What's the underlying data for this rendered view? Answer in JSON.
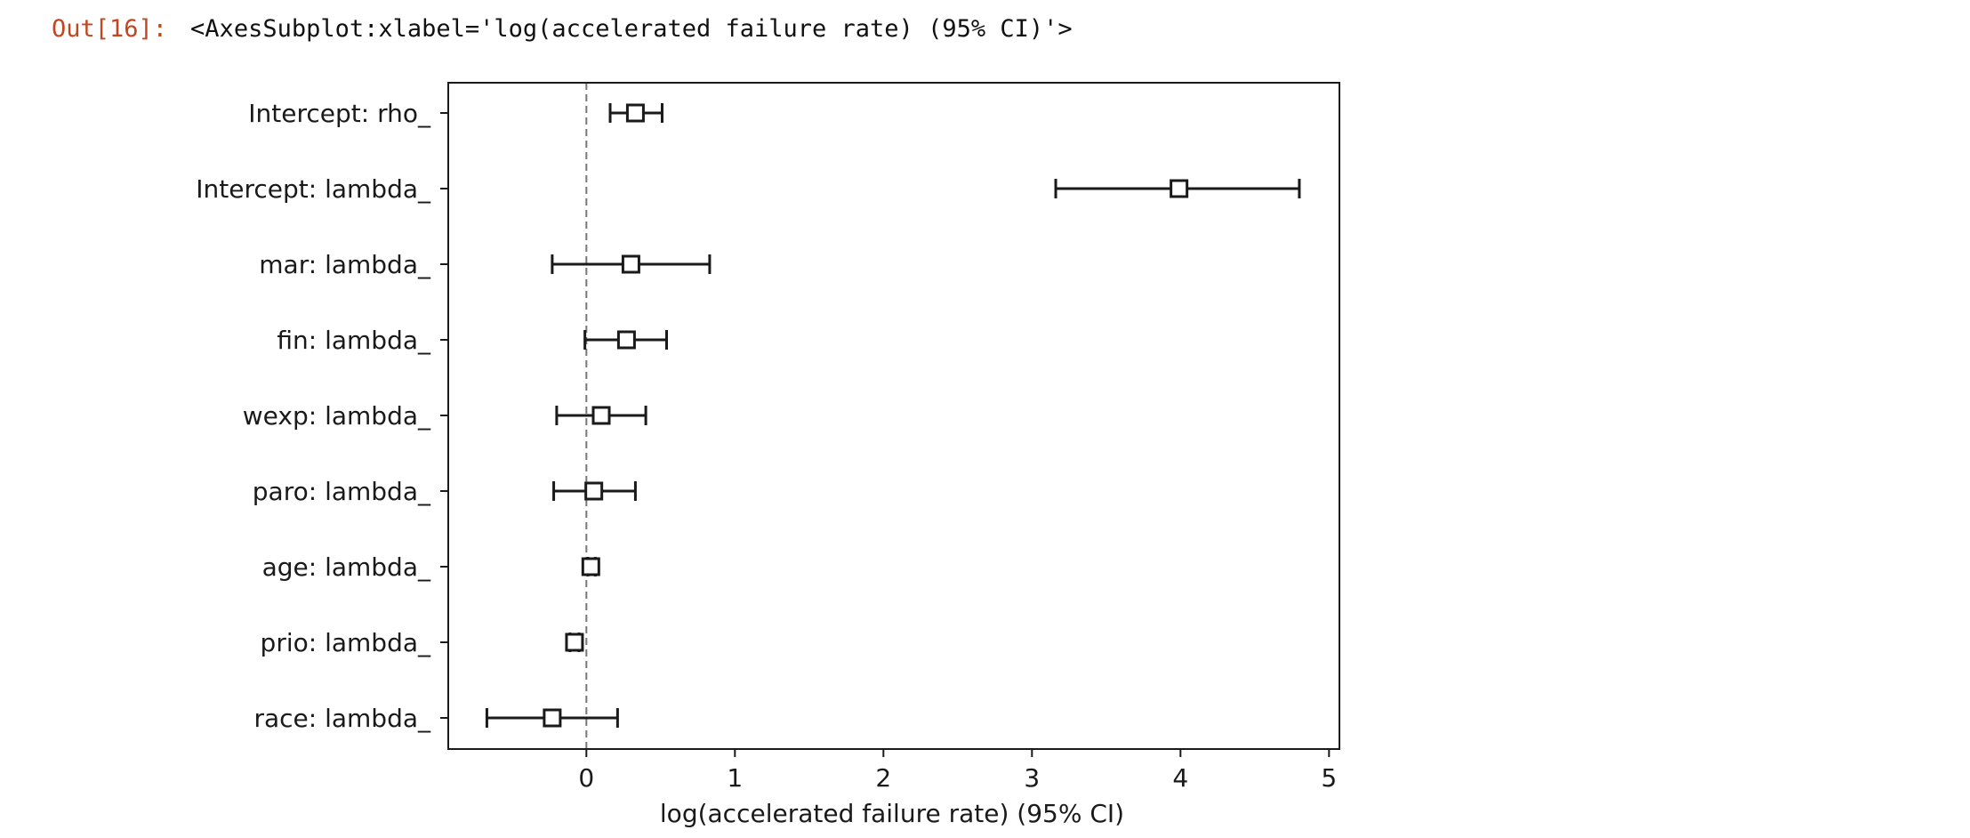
{
  "cell": {
    "prompt": "Out[16]:",
    "repr": "<AxesSubplot:xlabel='log(accelerated failure rate) (95% CI)'>"
  },
  "chart_data": {
    "type": "scatter",
    "subtype": "forest-plot-with-error-bars",
    "title": "",
    "xlabel": "log(accelerated failure rate) (95% CI)",
    "ylabel": "",
    "xlim": [
      -0.93,
      5.07
    ],
    "xticks": [
      0,
      1,
      2,
      3,
      4,
      5
    ],
    "reference_line_x": 0,
    "grid": false,
    "legend": "none",
    "marker": "open-square",
    "colors": {
      "marks": "#1a1a1a",
      "reference_line": "#777777"
    },
    "categories": [
      "Intercept: rho_",
      "Intercept: lambda_",
      "mar: lambda_",
      "fin: lambda_",
      "wexp: lambda_",
      "paro: lambda_",
      "age: lambda_",
      "prio: lambda_",
      "race: lambda_"
    ],
    "estimates": [
      0.33,
      3.99,
      0.3,
      0.27,
      0.1,
      0.05,
      0.03,
      -0.08,
      -0.23
    ],
    "lower": [
      0.16,
      3.16,
      -0.23,
      -0.01,
      -0.2,
      -0.22,
      0.01,
      -0.11,
      -0.67
    ],
    "upper": [
      0.51,
      4.8,
      0.83,
      0.54,
      0.4,
      0.33,
      0.06,
      -0.05,
      0.21
    ]
  }
}
